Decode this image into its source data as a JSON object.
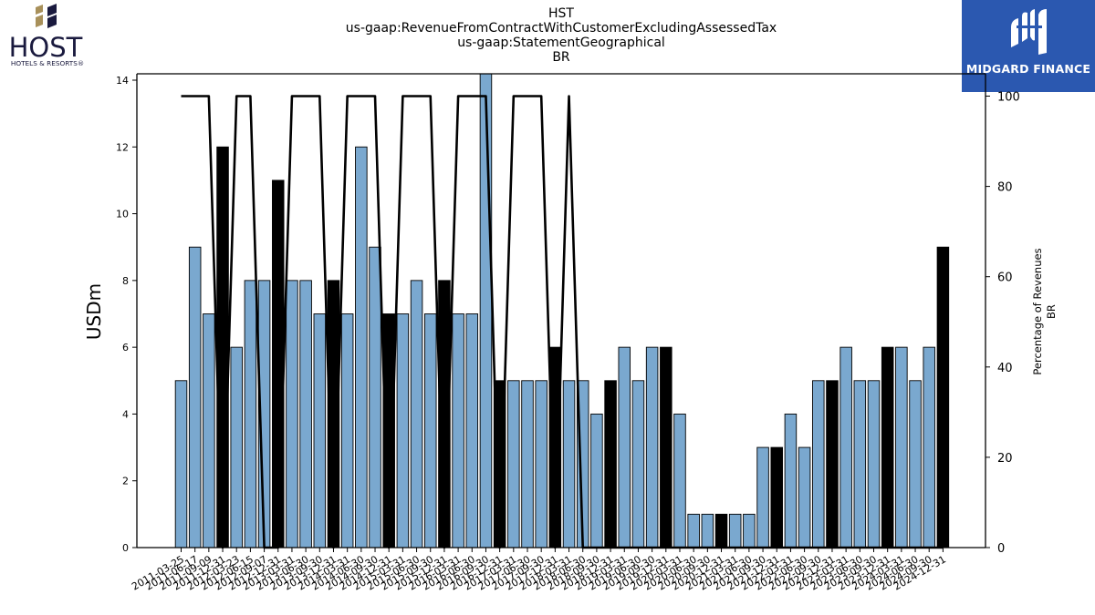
{
  "header": {
    "title_lines": [
      "HST",
      "us-gaap:RevenueFromContractWithCustomerExcludingAssessedTax",
      "us-gaap:StatementGeographical",
      "BR"
    ]
  },
  "logos": {
    "left_word": "HOST",
    "left_sub": "HOTELS & RESORTS®",
    "right_brand": "MIDGARD FINANCE"
  },
  "colors": {
    "bar_default": "#7aa8cf",
    "bar_highlight": "#000000",
    "line": "#000000",
    "brand_bg": "#2b58b0",
    "host_navy": "#1a1a3e",
    "host_gold": "#a8905a"
  },
  "chart_data": {
    "type": "bar",
    "ylabel": "USDm",
    "y2label_lines": [
      "Percentage of Revenues",
      "BR"
    ],
    "ylim": [
      0,
      14.2
    ],
    "y2lim": [
      0,
      100
    ],
    "yticks": [
      0,
      2,
      4,
      6,
      8,
      10,
      12,
      14
    ],
    "y2ticks": [
      0,
      20,
      40,
      60,
      80,
      100
    ],
    "categories": [
      "2011-03-25",
      "2011-06-17",
      "2011-09-09",
      "2011-12-31",
      "2012-03-23",
      "2012-06-15",
      "2012-09-07",
      "2012-12-31",
      "2013-03-31",
      "2013-06-30",
      "2013-09-30",
      "2013-12-31",
      "2014-03-31",
      "2014-06-30",
      "2014-09-30",
      "2014-12-31",
      "2015-03-31",
      "2015-06-30",
      "2015-09-30",
      "2015-12-31",
      "2016-03-31",
      "2016-06-30",
      "2016-09-30",
      "2016-12-31",
      "2017-03-31",
      "2017-06-30",
      "2017-09-30",
      "2017-12-31",
      "2018-03-31",
      "2018-06-30",
      "2018-09-30",
      "2018-12-31",
      "2019-03-31",
      "2019-06-30",
      "2019-09-30",
      "2019-12-31",
      "2020-03-31",
      "2020-06-30",
      "2020-09-30",
      "2020-12-31",
      "2021-03-31",
      "2021-06-30",
      "2021-09-30",
      "2021-12-31",
      "2022-03-31",
      "2022-06-30",
      "2022-09-30",
      "2022-12-31",
      "2023-03-31",
      "2023-06-30",
      "2023-09-30",
      "2023-12-31",
      "2024-03-31",
      "2024-06-30",
      "2024-09-30",
      "2024-12-31"
    ],
    "visible_tick_labels": [
      "2011-03-25",
      "2011-06-17",
      "2011-09-09",
      "2011-12-31",
      "2012-03-23",
      "2012-06-15",
      "2012-09-07",
      "2012-12-31",
      "2013-03-31",
      "2013-06-30",
      "2013-09-30",
      "2013-12-31",
      "2014-03-31",
      "2014-06-30",
      "2014-09-30",
      "2014-12-31",
      "2015-03-31",
      "2015-06-30",
      "2015-09-30",
      "2015-12-31",
      "2016-03-31",
      "2016-06-30",
      "2016-09-30",
      "2016-12-31",
      "2017-03-31",
      "2017-06-30",
      "2017-09-30",
      "2017-12-31",
      "2018-03-31",
      "2018-06-30",
      "2018-09-30",
      "2018-12-31",
      "2019-03-31",
      "2019-06-30",
      "2019-09-30",
      "2019-12-31",
      "2020-03-31",
      "2020-06-30",
      "2020-09-30",
      "2020-12-31",
      "2021-03-31",
      "2021-06-30",
      "2021-09-30",
      "2021-12-31",
      "2022-03-31",
      "2022-06-30",
      "2022-09-30",
      "2022-12-31",
      "2023-03-31",
      "2023-06-30",
      "2023-09-30",
      "2023-12-31",
      "2024-03-31",
      "2024-06-30",
      "2024-09-30",
      "2024-12-31"
    ],
    "series": [
      {
        "type": "bar",
        "values": [
          5,
          9,
          7,
          12,
          6,
          8,
          8,
          11,
          8,
          8,
          7,
          8,
          7,
          12,
          9,
          7,
          7,
          8,
          7,
          8,
          7,
          7,
          14.2,
          5,
          5,
          5,
          5,
          6,
          5,
          5,
          4,
          5,
          6,
          5,
          6,
          6,
          4,
          1,
          1,
          1,
          1,
          1,
          3,
          3,
          4,
          3,
          5,
          5,
          6,
          5,
          5,
          6,
          6,
          5,
          6,
          9
        ],
        "highlight": [
          false,
          false,
          false,
          true,
          false,
          false,
          false,
          true,
          false,
          false,
          false,
          true,
          false,
          false,
          false,
          true,
          false,
          false,
          false,
          true,
          false,
          false,
          false,
          true,
          false,
          false,
          false,
          true,
          false,
          false,
          false,
          true,
          false,
          false,
          false,
          true,
          false,
          false,
          false,
          true,
          false,
          false,
          false,
          true,
          false,
          false,
          false,
          true,
          false,
          false,
          false,
          true,
          false,
          false,
          false,
          true
        ]
      },
      {
        "type": "line",
        "axis": "right",
        "values": [
          100,
          100,
          100,
          0,
          100,
          100,
          0,
          0,
          100,
          100,
          100,
          0,
          100,
          100,
          100,
          0,
          100,
          100,
          100,
          0,
          100,
          100,
          100,
          0,
          100,
          100,
          100,
          0,
          100,
          0,
          0,
          0,
          0,
          0,
          0,
          0,
          0,
          0,
          0,
          0,
          0,
          0,
          0,
          0,
          0,
          0,
          0,
          0,
          0,
          0,
          0,
          0,
          0,
          0,
          0,
          0
        ]
      }
    ],
    "grid": false,
    "legend": "none"
  }
}
